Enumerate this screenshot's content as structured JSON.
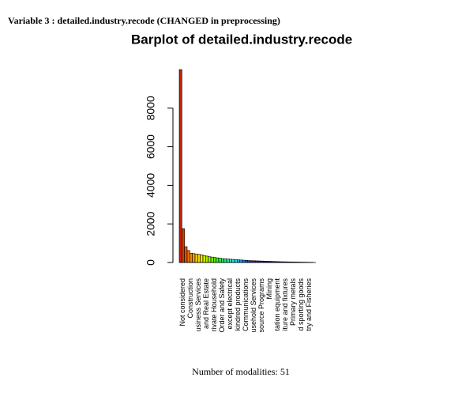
{
  "header": "Variable 3 :  detailed.industry.recode (CHANGED in preprocessing)",
  "footer": "Number of modalities: 51",
  "chart_data": {
    "type": "bar",
    "title": "Barplot of detailed.industry.recode",
    "categories": [
      "Not considered",
      null,
      null,
      "Construction",
      null,
      null,
      "usiness Services",
      null,
      null,
      "and Real Estate",
      null,
      null,
      "rivate Household",
      null,
      null,
      "Order and Safety",
      null,
      null,
      "except electrical",
      null,
      null,
      "kindred products",
      null,
      null,
      "Communications",
      null,
      null,
      "usehold Services",
      null,
      null,
      "source Programs",
      null,
      null,
      "Mining",
      null,
      null,
      "tation equipment",
      null,
      null,
      "iture and fixtures",
      null,
      null,
      "Primary metals",
      null,
      null,
      "d sporting goods",
      null,
      null,
      "try and Fisheries",
      null,
      null
    ],
    "values": [
      10000,
      1750,
      820,
      620,
      480,
      460,
      440,
      420,
      400,
      360,
      330,
      300,
      280,
      260,
      240,
      220,
      200,
      190,
      180,
      170,
      160,
      150,
      140,
      130,
      120,
      110,
      100,
      95,
      90,
      85,
      80,
      75,
      70,
      65,
      60,
      55,
      50,
      45,
      40,
      38,
      35,
      32,
      30,
      28,
      25,
      22,
      20,
      18,
      15,
      12,
      10
    ],
    "colors": [
      "#cc1a00",
      "#d93a00",
      "#e05500",
      "#e87000",
      "#ef8c00",
      "#f5a800",
      "#f5c400",
      "#f0dc00",
      "#e8e800",
      "#d0ee00",
      "#b4f000",
      "#96f000",
      "#78f000",
      "#5af000",
      "#40f020",
      "#30f040",
      "#28f060",
      "#20f080",
      "#20f0a0",
      "#20f0c0",
      "#20f0e0",
      "#20e0f0",
      "#20c0f0",
      "#20a0f0",
      "#2080f0",
      "#2060f0",
      "#2040f0",
      "#2828e8",
      "#3020d8",
      "#3820c8",
      "#3818b8",
      "#3010a8",
      "#281098",
      "#201088",
      "#181078",
      "#101068",
      "#0c0c58",
      "#0a0a50",
      "#080848",
      "#060640",
      "#050538",
      "#040430",
      "#03032a",
      "#020224",
      "#02021e",
      "#010118",
      "#010114",
      "#000010",
      "#00000c",
      "#000008",
      "#000004"
    ],
    "ylim": [
      0,
      10000
    ],
    "yticks": [
      0,
      2000,
      4000,
      6000,
      8000
    ]
  }
}
